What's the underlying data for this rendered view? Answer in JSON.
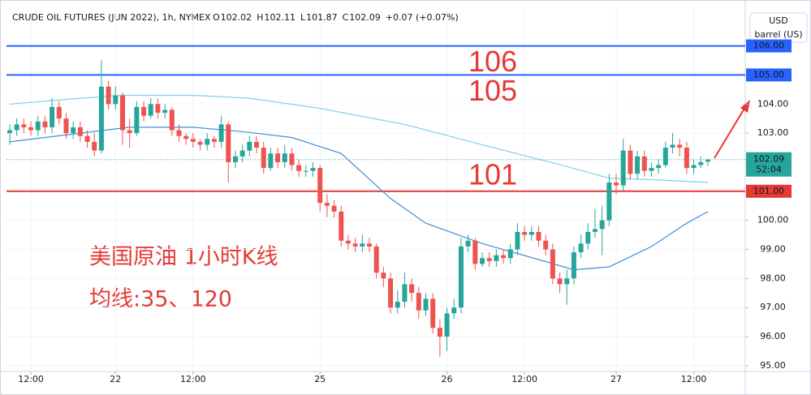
{
  "chart_data": {
    "type": "candlestick",
    "title": "CRUDE OIL FUTURES (JUN 2022), 1h, NYMEX",
    "ohlc": [
      {
        "key": "O",
        "value": 102.02
      },
      {
        "key": "H",
        "value": 102.11
      },
      {
        "key": "L",
        "value": 101.87
      },
      {
        "key": "C",
        "value": 102.09
      }
    ],
    "change": "+0.07 (+0.07%)",
    "currency": "USD",
    "unit": "barrel (US)",
    "annotations": [
      "美国原油 1小时K线",
      "均线:35、120"
    ],
    "up_color": "#26a69a",
    "down_color": "#ef5350",
    "open": [
      103.0,
      103.1,
      103.3,
      103.2,
      103.1,
      103.4,
      103.2,
      103.9,
      103.5,
      103.0,
      103.2,
      102.9,
      102.7,
      102.4,
      104.6,
      104.0,
      104.3,
      103.1,
      103.0,
      103.9,
      103.6,
      104.0,
      103.7,
      103.8,
      103.1,
      102.9,
      102.8,
      102.7,
      102.6,
      102.8,
      102.7,
      103.3,
      102.0,
      102.2,
      102.4,
      102.7,
      102.5,
      101.8,
      102.3,
      102.0,
      102.3,
      101.9,
      101.7,
      101.7,
      101.8,
      100.6,
      100.5,
      100.3,
      99.3,
      99.2,
      99.1,
      99.2,
      99.1,
      98.2,
      98.0,
      97.0,
      97.2,
      97.8,
      97.5,
      96.9,
      97.3,
      96.3,
      96.0,
      96.8,
      97.0,
      99.1,
      99.3,
      98.5,
      98.7,
      98.6,
      98.8,
      98.7,
      99.0,
      99.6,
      99.5,
      99.6,
      99.3,
      99.0,
      98.0,
      97.8,
      98.0,
      98.9,
      99.2,
      99.6,
      99.7,
      100.0,
      101.3,
      101.2,
      102.4,
      101.6,
      102.2,
      101.7,
      101.8,
      101.9,
      102.5,
      102.6,
      102.5,
      101.8,
      101.9,
      102.02
    ],
    "high": [
      103.3,
      103.5,
      103.5,
      103.4,
      103.6,
      103.6,
      104.2,
      104.1,
      103.7,
      103.4,
      103.4,
      103.1,
      103.0,
      105.5,
      104.8,
      104.6,
      104.4,
      103.5,
      104.1,
      104.1,
      104.2,
      104.2,
      104.0,
      103.9,
      103.3,
      103.0,
      103.0,
      102.8,
      103.0,
      102.9,
      103.6,
      103.4,
      102.4,
      102.6,
      102.9,
      102.9,
      102.7,
      102.5,
      102.5,
      102.6,
      102.5,
      102.1,
      101.9,
      102.0,
      101.9,
      100.9,
      100.7,
      100.5,
      99.5,
      99.4,
      99.5,
      99.4,
      99.2,
      98.4,
      98.2,
      97.6,
      98.2,
      98.0,
      97.7,
      97.5,
      97.5,
      96.6,
      97.0,
      97.3,
      99.4,
      99.5,
      99.4,
      98.9,
      98.9,
      99.0,
      99.0,
      99.2,
      99.9,
      99.8,
      99.8,
      99.8,
      99.5,
      99.2,
      98.2,
      98.3,
      99.1,
      99.5,
      99.9,
      100.4,
      100.5,
      101.6,
      101.6,
      102.8,
      102.6,
      102.4,
      102.4,
      102.0,
      102.1,
      102.7,
      103.0,
      102.8,
      102.7,
      102.1,
      102.2,
      102.11
    ],
    "low": [
      102.6,
      102.9,
      103.0,
      102.9,
      102.9,
      103.0,
      103.0,
      103.3,
      102.8,
      102.8,
      102.7,
      102.5,
      102.2,
      102.3,
      103.8,
      103.8,
      102.6,
      102.5,
      102.9,
      103.4,
      103.5,
      103.5,
      103.5,
      102.9,
      102.7,
      102.6,
      102.5,
      102.4,
      102.4,
      102.5,
      102.5,
      101.3,
      101.8,
      102.0,
      102.2,
      102.3,
      101.6,
      101.7,
      101.8,
      101.8,
      101.7,
      101.5,
      101.5,
      101.5,
      100.3,
      100.1,
      100.1,
      99.1,
      99.0,
      98.9,
      98.9,
      98.9,
      98.0,
      97.7,
      96.8,
      96.8,
      97.0,
      97.2,
      96.6,
      96.7,
      96.1,
      95.3,
      95.5,
      96.6,
      96.8,
      98.9,
      98.3,
      98.4,
      98.4,
      98.4,
      98.5,
      98.5,
      98.8,
      99.3,
      99.3,
      99.1,
      98.8,
      97.8,
      97.5,
      97.1,
      97.8,
      98.7,
      99.0,
      99.4,
      98.8,
      99.8,
      100.9,
      101.0,
      101.4,
      101.4,
      101.5,
      101.5,
      101.6,
      101.8,
      102.3,
      102.2,
      101.6,
      101.6,
      101.8,
      101.87
    ],
    "close": [
      103.1,
      103.3,
      103.2,
      103.1,
      103.4,
      103.2,
      103.9,
      103.5,
      103.0,
      103.2,
      102.9,
      102.7,
      102.4,
      104.6,
      104.0,
      104.3,
      103.1,
      103.0,
      103.9,
      103.6,
      104.0,
      103.7,
      103.8,
      103.1,
      102.9,
      102.8,
      102.7,
      102.6,
      102.8,
      102.7,
      103.3,
      102.0,
      102.2,
      102.4,
      102.7,
      102.5,
      101.8,
      102.3,
      102.0,
      102.3,
      101.9,
      101.7,
      101.7,
      101.8,
      100.6,
      100.5,
      100.3,
      99.3,
      99.2,
      99.1,
      99.2,
      99.1,
      98.2,
      98.0,
      97.0,
      97.2,
      97.8,
      97.5,
      96.9,
      97.3,
      96.3,
      96.0,
      96.8,
      97.0,
      99.1,
      99.3,
      98.5,
      98.7,
      98.6,
      98.8,
      98.7,
      99.0,
      99.6,
      99.5,
      99.6,
      99.3,
      99.0,
      98.0,
      97.8,
      98.0,
      98.9,
      99.2,
      99.6,
      99.7,
      100.0,
      101.3,
      101.2,
      102.4,
      101.6,
      102.2,
      101.7,
      101.8,
      101.9,
      102.5,
      102.6,
      102.5,
      101.8,
      101.9,
      102.0,
      102.09
    ],
    "lines": [
      {
        "color": "#7dd3e8",
        "x": [
          0,
          10,
          16,
          26,
          34,
          44,
          56,
          67,
          79,
          85,
          91,
          99
        ],
        "values": [
          104.0,
          104.2,
          104.3,
          104.3,
          104.2,
          103.85,
          103.3,
          102.6,
          101.85,
          101.45,
          101.4,
          101.3
        ]
      },
      {
        "color": "#3d8fdc",
        "x": [
          0,
          10,
          17,
          26,
          33,
          40,
          47,
          54,
          59,
          67,
          75,
          80,
          85,
          91,
          96,
          99
        ],
        "values": [
          102.7,
          103.0,
          103.2,
          103.2,
          103.05,
          102.85,
          102.3,
          100.75,
          99.9,
          99.2,
          98.65,
          98.3,
          98.4,
          99.1,
          99.9,
          100.3
        ]
      }
    ],
    "hlines": [
      {
        "value": 106,
        "label": "106.00",
        "color": "#2962ff"
      },
      {
        "value": 105,
        "label": "105.00",
        "color": "#2962ff"
      },
      {
        "value": 101,
        "label": "101.00",
        "color": "#e53935"
      }
    ],
    "last_price": {
      "value": 102.09,
      "countdown": "52:04",
      "color": "#26a69a"
    },
    "xlim": [
      -0.46,
      104.3
    ],
    "xticks": [
      {
        "value": 3,
        "label": "12:00"
      },
      {
        "value": 15,
        "label": "22"
      },
      {
        "value": 26,
        "label": "12:00"
      },
      {
        "value": 44,
        "label": "25"
      },
      {
        "value": 62,
        "label": "26"
      },
      {
        "value": 73,
        "label": "12:00"
      },
      {
        "value": 86,
        "label": "27"
      },
      {
        "value": 97,
        "label": "12:00"
      }
    ],
    "ylim": [
      94.8,
      107.3
    ],
    "yticks": [
      {
        "value": 95,
        "label": "95.00"
      },
      {
        "value": 96,
        "label": "96.00"
      },
      {
        "value": 97,
        "label": "97.00"
      },
      {
        "value": 98,
        "label": "98.00"
      },
      {
        "value": 99,
        "label": "99.00"
      },
      {
        "value": 100,
        "label": "100.00"
      },
      {
        "value": 103,
        "label": "103.00"
      },
      {
        "value": 104,
        "label": "104.00"
      }
    ],
    "grid": true
  }
}
